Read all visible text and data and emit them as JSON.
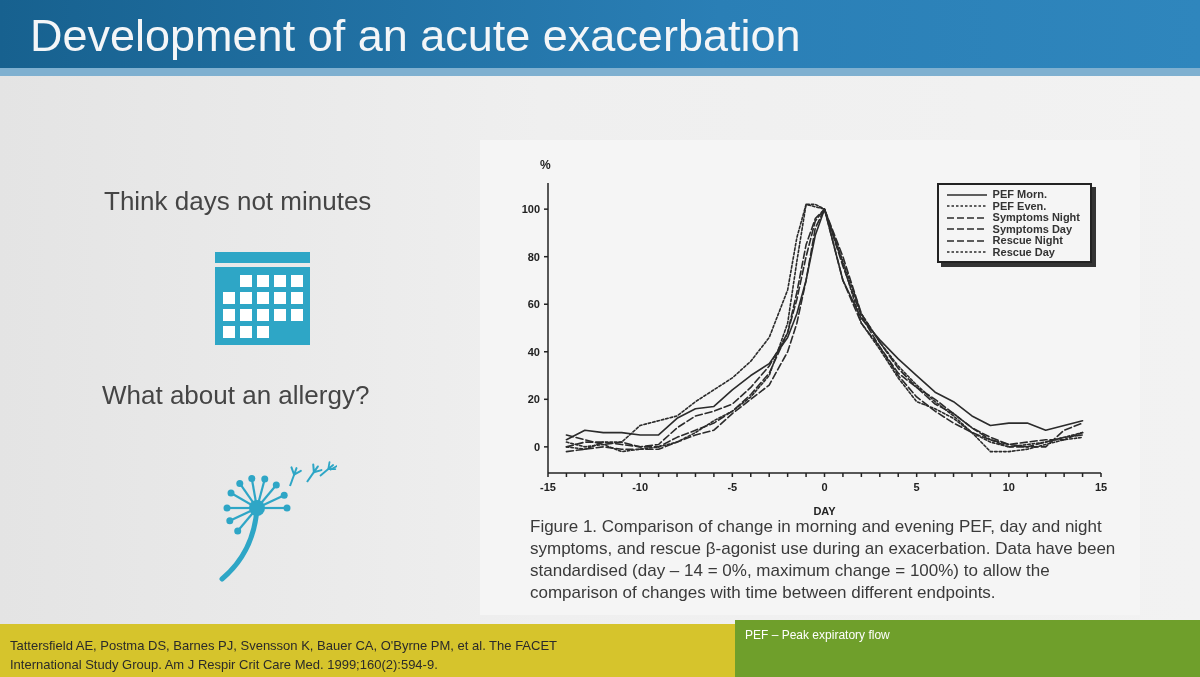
{
  "chart_data": {
    "type": "line",
    "title": "Development of an acute exacerbation",
    "xlabel": "DAY",
    "ylabel": "%",
    "x": [
      -14,
      -13,
      -12,
      -11,
      -10,
      -9,
      -8,
      -7,
      -6,
      -5,
      -4,
      -3,
      -2,
      -1.5,
      -1,
      -0.5,
      0,
      1,
      2,
      3,
      4,
      5,
      6,
      7,
      8,
      9,
      10,
      11,
      12,
      13,
      14
    ],
    "series": [
      {
        "name": "PEF Morn.",
        "color": "#2b2b2b",
        "line_style": "solid",
        "values": [
          3,
          7,
          6,
          6,
          5,
          5,
          12,
          16,
          17,
          24,
          30,
          35,
          46,
          56,
          70,
          89,
          100,
          70,
          54,
          45,
          37,
          30,
          23,
          19,
          13,
          9,
          10,
          10,
          7,
          9,
          11
        ]
      },
      {
        "name": "PEF Even.",
        "color": "#2b2b2b",
        "line_style": "dotted",
        "values": [
          2,
          0,
          1,
          -2,
          -1,
          0,
          2,
          6,
          11,
          15,
          21,
          30,
          52,
          78,
          102,
          102,
          100,
          78,
          56,
          44,
          34,
          26,
          19,
          13,
          6,
          -2,
          -2,
          -1,
          1,
          3,
          4
        ]
      },
      {
        "name": "Symptoms Night",
        "color": "#2b2b2b",
        "line_style": "dashed",
        "values": [
          -2,
          -1,
          0,
          -1,
          -1,
          -1,
          2,
          5,
          7,
          14,
          20,
          26,
          40,
          52,
          70,
          92,
          100,
          80,
          56,
          44,
          33,
          25,
          20,
          14,
          8,
          3,
          0,
          0,
          2,
          4,
          5
        ]
      },
      {
        "name": "Symptoms Day",
        "color": "#2b2b2b",
        "line_style": "dashed",
        "values": [
          0,
          2,
          2,
          1,
          0,
          1,
          8,
          13,
          15,
          18,
          25,
          34,
          48,
          62,
          80,
          95,
          100,
          70,
          52,
          42,
          30,
          21,
          15,
          10,
          6,
          3,
          1,
          0,
          0,
          7,
          10
        ]
      },
      {
        "name": "Rescue Night",
        "color": "#2b2b2b",
        "line_style": "dashed",
        "values": [
          5,
          3,
          1,
          2,
          0,
          0,
          4,
          7,
          10,
          15,
          22,
          31,
          48,
          65,
          85,
          96,
          100,
          76,
          55,
          42,
          31,
          25,
          18,
          14,
          8,
          4,
          1,
          2,
          3,
          3,
          6
        ]
      },
      {
        "name": "Rescue Day",
        "color": "#2b2b2b",
        "line_style": "dotted",
        "values": [
          0,
          -1,
          2,
          2,
          9,
          11,
          13,
          19,
          24,
          29,
          36,
          46,
          66,
          88,
          102,
          101,
          100,
          77,
          52,
          41,
          29,
          19,
          16,
          12,
          6,
          2,
          0,
          1,
          2,
          4,
          6
        ]
      }
    ],
    "xlim": [
      -15,
      15
    ],
    "xticks": [
      -15,
      {
        "value": -14,
        "label": null
      },
      {
        "value": -13,
        "label": null
      },
      {
        "value": -12,
        "label": null
      },
      {
        "value": -11,
        "label": null
      },
      -10,
      {
        "value": -9,
        "label": null
      },
      {
        "value": -8,
        "label": null
      },
      {
        "value": -7,
        "label": null
      },
      {
        "value": -6,
        "label": null
      },
      -5,
      {
        "value": -4,
        "label": null
      },
      {
        "value": -3,
        "label": null
      },
      {
        "value": -2,
        "label": null
      },
      {
        "value": -1,
        "label": null
      },
      0,
      {
        "value": 1,
        "label": null
      },
      {
        "value": 2,
        "label": null
      },
      {
        "value": 3,
        "label": null
      },
      {
        "value": 4,
        "label": null
      },
      5,
      {
        "value": 6,
        "label": null
      },
      {
        "value": 7,
        "label": null
      },
      {
        "value": 8,
        "label": null
      },
      {
        "value": 9,
        "label": null
      },
      10,
      {
        "value": 11,
        "label": null
      },
      {
        "value": 12,
        "label": null
      },
      {
        "value": 13,
        "label": null
      },
      {
        "value": 14,
        "label": null
      },
      15
    ],
    "ylim": [
      -11,
      111
    ],
    "yticks": [
      0,
      20,
      40,
      60,
      80,
      100
    ],
    "legend": "top right",
    "annotations": [
      "Think days not minutes",
      "What about an allergy?",
      "Figure 1. Comparison of change in morning and evening PEF, day and night symptoms, and rescue β-agonist use during an exacerbation. Data have been standardised (day – 14 = 0%, maximum change = 100%) to allow the comparison of changes with time between different endpoints.",
      "Tattersfield AE, Postma DS, Barnes PJ, Svensson K, Bauer CA, O'Byrne PM, et al. The FACET International Study Group. Am J Respir Crit Care Med. 1999;160(2):594-9.",
      "PEF – Peak expiratory flow"
    ]
  }
}
